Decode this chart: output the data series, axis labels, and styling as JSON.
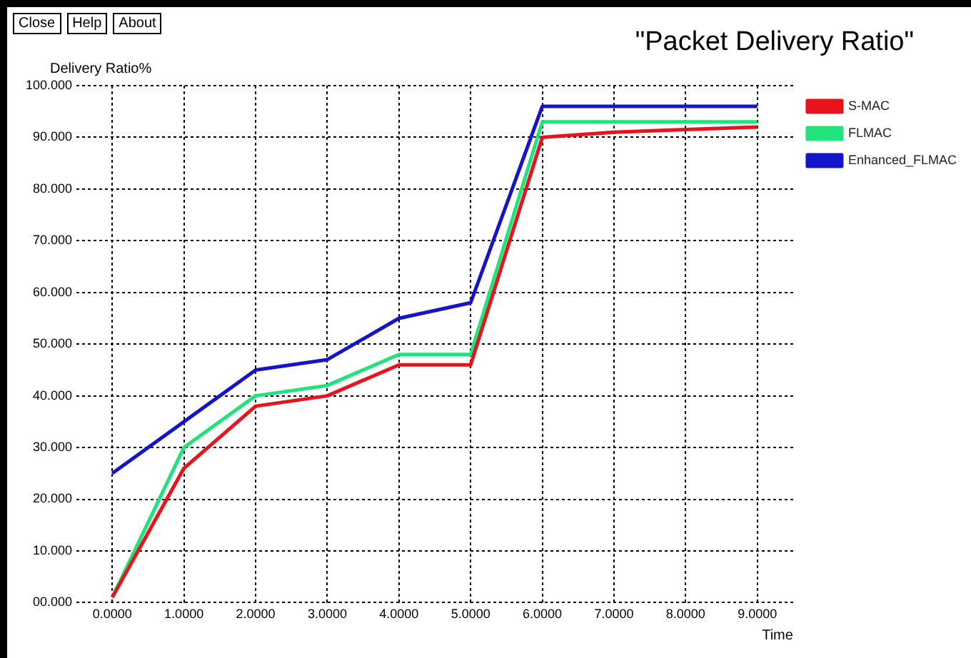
{
  "chart_data": {
    "type": "line",
    "title": "\"Packet Delivery Ratio\"",
    "ylabel": "Delivery Ratio%",
    "xlabel": "Time",
    "annotations": [
      "Close",
      "Help",
      "About"
    ],
    "x": [
      0,
      1,
      2,
      3,
      4,
      5,
      6,
      7,
      8,
      9
    ],
    "series": [
      {
        "name": "S-MAC",
        "color": "#e8141c",
        "values": [
          1,
          26,
          38,
          40,
          46,
          46,
          90,
          91,
          91.5,
          92
        ]
      },
      {
        "name": "FLMAC",
        "color": "#22e27c",
        "values": [
          1,
          30,
          40,
          42,
          48,
          48,
          93,
          93,
          93,
          93
        ]
      },
      {
        "name": "Enhanced_FLMAC",
        "color": "#1414c8",
        "values": [
          25,
          35,
          45,
          47,
          55,
          58,
          96,
          96,
          96,
          96
        ]
      }
    ],
    "xlim": [
      -0.5,
      9.5
    ],
    "ylim": [
      0,
      100
    ],
    "xticks": [
      {
        "value": 0,
        "label": "0.0000"
      },
      {
        "value": 1,
        "label": "1.0000"
      },
      {
        "value": 2,
        "label": "2.0000"
      },
      {
        "value": 3,
        "label": "3.0000"
      },
      {
        "value": 4,
        "label": "4.0000"
      },
      {
        "value": 5,
        "label": "5.0000"
      },
      {
        "value": 6,
        "label": "6.0000"
      },
      {
        "value": 7,
        "label": "7.0000"
      },
      {
        "value": 8,
        "label": "8.0000"
      },
      {
        "value": 9,
        "label": "9.0000"
      }
    ],
    "yticks": [
      {
        "value": 0,
        "label": "00.000"
      },
      {
        "value": 10,
        "label": "10.000"
      },
      {
        "value": 20,
        "label": "20.000"
      },
      {
        "value": 30,
        "label": "30.000"
      },
      {
        "value": 40,
        "label": "40.000"
      },
      {
        "value": 50,
        "label": "50.000"
      },
      {
        "value": 60,
        "label": "60.000"
      },
      {
        "value": 70,
        "label": "70.000"
      },
      {
        "value": 80,
        "label": "80.000"
      },
      {
        "value": 90,
        "label": "90.000"
      },
      {
        "value": 100,
        "label": "100.000"
      }
    ],
    "grid": true,
    "legend": "right",
    "marker": "none",
    "line_style": "solid"
  }
}
